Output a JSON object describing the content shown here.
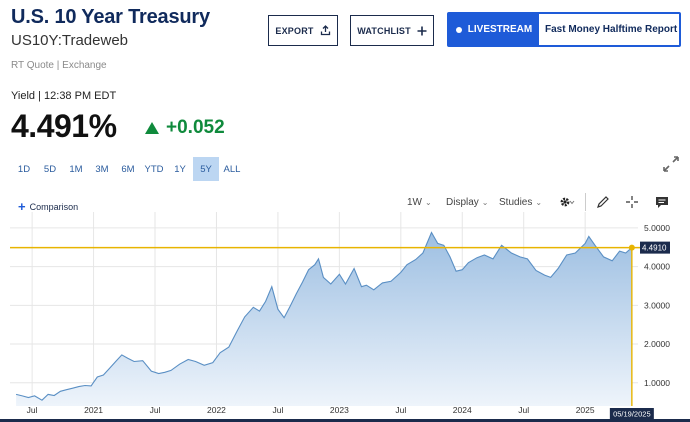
{
  "header": {
    "title": "U.S. 10 Year Treasury",
    "symbol": "US10Y:Tradeweb",
    "quote_source": "RT Quote | Exchange"
  },
  "actions": {
    "export_label": "EXPORT",
    "watchlist_label": "WATCHLIST",
    "livestream_label": "LIVESTREAM",
    "livestream_show": "Fast Money Halftime Report"
  },
  "quote": {
    "yield_label": "Yield | 12:38 PM EDT",
    "value": "4.491%",
    "change": "+0.052",
    "direction": "up",
    "change_color": "#0f8a3c"
  },
  "ranges": {
    "items": [
      "1D",
      "5D",
      "1M",
      "3M",
      "6M",
      "YTD",
      "1Y",
      "5Y",
      "ALL"
    ],
    "active": "5Y"
  },
  "toolbar": {
    "comparison_label": "Comparison",
    "interval_label": "1W",
    "display_label": "Display",
    "studies_label": "Studies",
    "icons": [
      "gear-icon",
      "pencil-icon",
      "crosshair-icon",
      "comment-icon",
      "expand-icon"
    ]
  },
  "chart_data": {
    "type": "area",
    "series": [
      {
        "x": [
          2020.37,
          2020.42,
          2020.47,
          2020.52,
          2020.58,
          2020.63,
          2020.68,
          2020.73,
          2020.78,
          2020.83,
          2020.88,
          2020.93,
          2020.98,
          2021.03,
          2021.08,
          2021.13,
          2021.18,
          2021.23,
          2021.28,
          2021.33,
          2021.4,
          2021.47,
          2021.53,
          2021.58,
          2021.63,
          2021.7,
          2021.77,
          2021.83,
          2021.9,
          2021.97,
          2022.03,
          2022.1,
          2022.17,
          2022.23,
          2022.3,
          2022.35,
          2022.4,
          2022.45,
          2022.5,
          2022.55,
          2022.6,
          2022.65,
          2022.7,
          2022.75,
          2022.8,
          2022.83,
          2022.87,
          2022.93,
          2023.0,
          2023.05,
          2023.12,
          2023.18,
          2023.22,
          2023.28,
          2023.35,
          2023.42,
          2023.5,
          2023.55,
          2023.62,
          2023.68,
          2023.75,
          2023.8,
          2023.85,
          2023.9,
          2023.95,
          2024.0,
          2024.05,
          2024.12,
          2024.18,
          2024.25,
          2024.32,
          2024.4,
          2024.47,
          2024.53,
          2024.6,
          2024.67,
          2024.72,
          2024.78,
          2024.85,
          2024.92,
          2025.0,
          2025.03,
          2025.08,
          2025.15,
          2025.22,
          2025.28,
          2025.33,
          2025.38
        ],
        "values": [
          0.7,
          0.66,
          0.62,
          0.66,
          0.55,
          0.7,
          0.67,
          0.78,
          0.82,
          0.86,
          0.9,
          0.93,
          0.92,
          1.15,
          1.2,
          1.37,
          1.55,
          1.72,
          1.63,
          1.55,
          1.57,
          1.3,
          1.24,
          1.27,
          1.32,
          1.48,
          1.6,
          1.55,
          1.45,
          1.52,
          1.78,
          1.92,
          2.35,
          2.7,
          2.95,
          2.85,
          3.1,
          3.48,
          2.9,
          2.68,
          2.98,
          3.3,
          3.6,
          3.92,
          4.05,
          4.2,
          3.72,
          3.55,
          3.8,
          3.55,
          3.95,
          3.48,
          3.52,
          3.4,
          3.58,
          3.62,
          3.85,
          4.05,
          4.18,
          4.35,
          4.88,
          4.6,
          4.55,
          4.25,
          3.88,
          3.92,
          4.1,
          4.23,
          4.3,
          4.2,
          4.55,
          4.35,
          4.25,
          4.2,
          3.9,
          3.78,
          3.72,
          3.95,
          4.3,
          4.35,
          4.6,
          4.78,
          4.55,
          4.25,
          4.15,
          4.4,
          4.35,
          4.49
        ]
      }
    ],
    "x_tick_labels": [
      "Jul",
      "2021",
      "Jul",
      "2022",
      "Jul",
      "2023",
      "Jul",
      "2024",
      "Jul",
      "2025"
    ],
    "x_tick_values": [
      2020.5,
      2021.0,
      2021.5,
      2022.0,
      2022.5,
      2023.0,
      2023.5,
      2024.0,
      2024.5,
      2025.0
    ],
    "y_tick_labels": [
      "1.0000",
      "2.0000",
      "3.0000",
      "4.0000",
      "5.0000"
    ],
    "y_tick_values": [
      1,
      2,
      3,
      4,
      5
    ],
    "ylim": [
      0.4,
      5.1
    ],
    "xlim": [
      2020.32,
      2025.43
    ],
    "last_value_label": "4.4910",
    "last_date_label": "05/19/2025",
    "line_color": "#5a8fc4",
    "fill_top_color": "#9dbfe2",
    "fill_bottom_color": "#eef4fb",
    "crosshair_color": "#e8b400",
    "grid": true
  }
}
